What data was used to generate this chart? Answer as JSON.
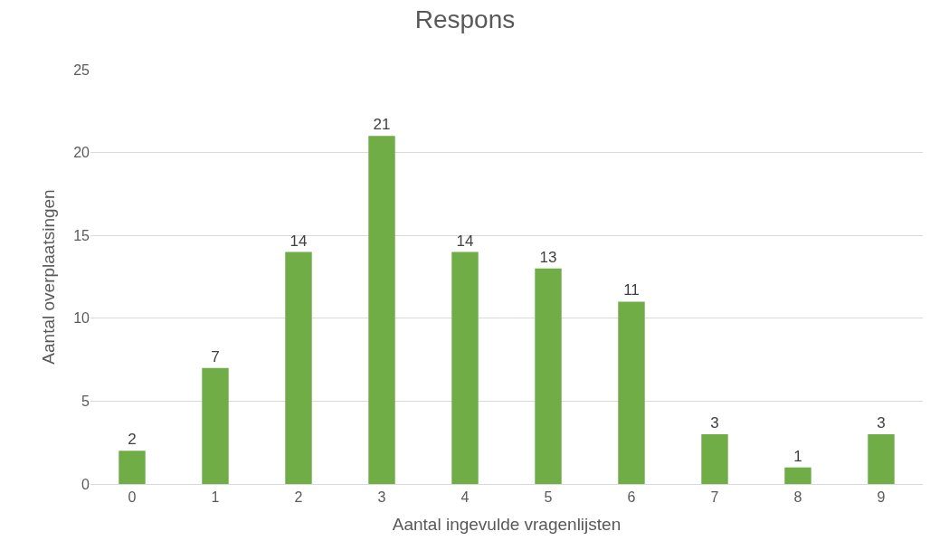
{
  "chart_data": {
    "type": "bar",
    "title": "Respons",
    "xlabel": "Aantal ingevulde vragenlijsten",
    "ylabel": "Aantal overplaatsingen",
    "categories": [
      "0",
      "1",
      "2",
      "3",
      "4",
      "5",
      "6",
      "7",
      "8",
      "9"
    ],
    "values": [
      2,
      7,
      14,
      21,
      14,
      13,
      11,
      3,
      1,
      3
    ],
    "color": "#70ad47",
    "ylim": [
      0,
      25
    ],
    "yticks": [
      0,
      5,
      10,
      15,
      20,
      25
    ],
    "grid": "y",
    "data_labels": true
  }
}
